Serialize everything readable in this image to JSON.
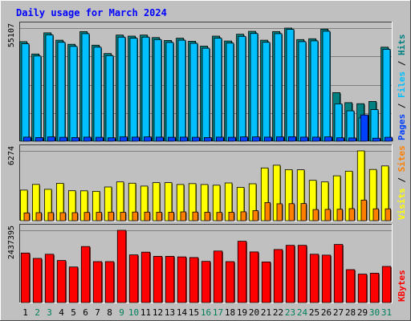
{
  "chart_data": {
    "title": "Daily usage for March 2024",
    "categories": [
      "1",
      "2",
      "3",
      "4",
      "5",
      "6",
      "7",
      "8",
      "9",
      "10",
      "11",
      "12",
      "13",
      "14",
      "15",
      "16",
      "17",
      "18",
      "19",
      "20",
      "21",
      "22",
      "23",
      "24",
      "25",
      "26",
      "27",
      "28",
      "29",
      "30",
      "31"
    ],
    "weekend_days": [
      "2",
      "3",
      "9",
      "10",
      "16",
      "17",
      "23",
      "24",
      "30",
      "31"
    ],
    "panels": [
      {
        "type": "bar",
        "ymax_label": "55107",
        "ylim": [
          0,
          55107
        ],
        "legend": [
          "Pages",
          "Files",
          "Hits"
        ],
        "series": [
          {
            "name": "Hits",
            "color": "#008080",
            "values": [
              48500,
              42500,
              52800,
              49200,
              47200,
              53400,
              46800,
              42700,
              51700,
              51200,
              51700,
              50500,
              49100,
              50200,
              48700,
              46300,
              51200,
              48800,
              52100,
              53500,
              49200,
              53400,
              55107,
              49500,
              49900,
              54600,
              23700,
              18800,
              18300,
              19400,
              45800
            ]
          },
          {
            "name": "Files",
            "color": "#00c0ff",
            "values": [
              47500,
              41500,
              51800,
              48200,
              46200,
              52400,
              45800,
              41700,
              50700,
              50200,
              50700,
              49500,
              48100,
              49200,
              47700,
              45300,
              50200,
              47800,
              51100,
              52500,
              48200,
              52400,
              54500,
              48500,
              48900,
              53600,
              18200,
              14800,
              11400,
              15400,
              44800
            ]
          },
          {
            "name": "Pages",
            "color": "#0040ff",
            "values": [
              2000,
              1800,
              2100,
              1900,
              1800,
              2000,
              1900,
              1700,
              2100,
              2000,
              2100,
              2000,
              1900,
              2000,
              1900,
              1800,
              2000,
              1900,
              2100,
              2100,
              2000,
              2100,
              2200,
              2000,
              2000,
              2100,
              1700,
              1600,
              12800,
              1500,
              1900
            ]
          }
        ]
      },
      {
        "type": "bar",
        "ymax_label": "6274",
        "ylim": [
          0,
          6274
        ],
        "legend": [
          "Visits",
          "Sites"
        ],
        "series": [
          {
            "name": "Visits",
            "color": "#ffff00",
            "values": [
              2750,
              3260,
              2820,
              3360,
              2690,
              2680,
              2640,
              3030,
              3480,
              3370,
              3110,
              3420,
              3420,
              3250,
              3330,
              3250,
              3190,
              3390,
              2990,
              3320,
              4740,
              4980,
              4590,
              4570,
              3630,
              3480,
              4030,
              4450,
              6274,
              4600,
              4920
            ]
          },
          {
            "name": "Sites",
            "color": "#ff8000",
            "values": [
              700,
              720,
              730,
              720,
              720,
              740,
              750,
              770,
              760,
              780,
              770,
              760,
              760,
              790,
              780,
              760,
              740,
              760,
              800,
              900,
              1630,
              1520,
              1530,
              1540,
              1000,
              1020,
              1030,
              1080,
              1850,
              1070,
              1070
            ]
          }
        ]
      },
      {
        "type": "bar",
        "ymax_label": "2437395",
        "ylim": [
          0,
          2437395
        ],
        "legend": [
          "KBytes"
        ],
        "series": [
          {
            "name": "KBytes",
            "color": "#ff0000",
            "values": [
              1670000,
              1490000,
              1630000,
              1420000,
              1200000,
              1890000,
              1380000,
              1380000,
              2437395,
              1610000,
              1700000,
              1560000,
              1560000,
              1540000,
              1520000,
              1390000,
              1740000,
              1380000,
              2070000,
              1710000,
              1370000,
              1790000,
              1930000,
              1930000,
              1630000,
              1600000,
              1960000,
              1110000,
              960000,
              990000,
              1220000
            ]
          }
        ]
      }
    ],
    "legend_separator": "/"
  },
  "colors": {
    "background": "#c0c0c0",
    "title": "#0000ff",
    "weekday_label": "#000000",
    "weekend_label": "#00805c",
    "gridline": "#808080"
  }
}
